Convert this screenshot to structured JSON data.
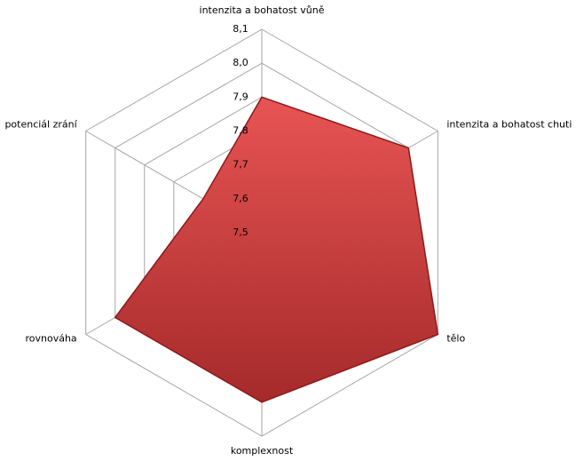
{
  "chart_data": {
    "type": "radar",
    "categories": [
      "intenzita a bohatost vůně",
      "intenzita a bohatost chuti",
      "tělo",
      "komplexnost",
      "rovnováha",
      "potenciál zrání"
    ],
    "series": [
      {
        "color": "#d94141",
        "values": [
          7.9,
          8.0,
          8.1,
          8.0,
          8.0,
          7.7
        ]
      }
    ],
    "rlim": [
      7.5,
      8.1
    ],
    "rticks": [
      {
        "value": 7.5,
        "label": "7,5"
      },
      {
        "value": 7.6,
        "label": "7,6"
      },
      {
        "value": 7.7,
        "label": "7,7"
      },
      {
        "value": 7.8,
        "label": "7,8"
      },
      {
        "value": 7.9,
        "label": "7,9"
      },
      {
        "value": 8.0,
        "label": "8,0"
      },
      {
        "value": 8.1,
        "label": "8,1"
      }
    ],
    "grid": true
  }
}
